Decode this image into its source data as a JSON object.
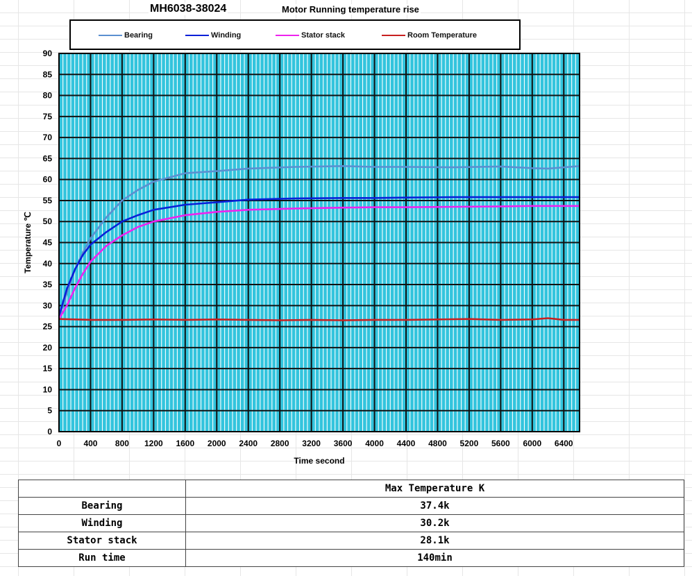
{
  "page": {
    "title": "MH6038-38024",
    "subtitle": "Motor Running temperature rise"
  },
  "chart_data": {
    "type": "line",
    "xlabel": "Time second",
    "ylabel": "Temperature ℃",
    "xlim": [
      0,
      6600
    ],
    "ylim": [
      0,
      90
    ],
    "xticks": [
      0,
      400,
      800,
      1200,
      1600,
      2000,
      2400,
      2800,
      3200,
      3600,
      4000,
      4400,
      4800,
      5200,
      5600,
      6000,
      6400
    ],
    "yticks": [
      0,
      5,
      10,
      15,
      20,
      25,
      30,
      35,
      40,
      45,
      50,
      55,
      60,
      65,
      70,
      75,
      80,
      85,
      90
    ],
    "grid": true,
    "legend_position": "top",
    "plot_background": "#33c4dd",
    "series": [
      {
        "name": "Bearing",
        "color": "#5b8fd0",
        "x": [
          0,
          100,
          200,
          300,
          400,
          600,
          800,
          1000,
          1200,
          1600,
          2000,
          2400,
          3000,
          3600,
          4000,
          4400,
          5000,
          5600,
          6000,
          6200,
          6600
        ],
        "y": [
          27,
          33,
          38.5,
          42.5,
          46,
          51,
          55,
          57.5,
          59.5,
          61.5,
          62,
          62.6,
          63,
          63.2,
          63,
          63,
          62.9,
          63.1,
          62.7,
          62.6,
          63.2
        ]
      },
      {
        "name": "Winding",
        "color": "#0a1fd8",
        "x": [
          0,
          100,
          200,
          300,
          400,
          600,
          800,
          1000,
          1200,
          1600,
          2000,
          2400,
          3000,
          3600,
          4000,
          4400,
          5000,
          5600,
          6000,
          6600
        ],
        "y": [
          27.5,
          34,
          38.5,
          42,
          44.5,
          47.5,
          50,
          51.5,
          52.8,
          54,
          54.6,
          55.2,
          55.5,
          55.6,
          55.6,
          55.7,
          55.8,
          55.8,
          55.8,
          55.8
        ]
      },
      {
        "name": "Stator stack",
        "color": "#ee22ee",
        "x": [
          0,
          100,
          200,
          300,
          400,
          600,
          800,
          1000,
          1200,
          1600,
          2000,
          2400,
          3000,
          3600,
          4000,
          4400,
          5000,
          5600,
          6000,
          6600
        ],
        "y": [
          26.8,
          30,
          34,
          37.5,
          40.5,
          44.2,
          46.7,
          48.7,
          50,
          51.5,
          52.3,
          52.8,
          53.1,
          53.3,
          53.4,
          53.4,
          53.5,
          53.6,
          53.7,
          53.7
        ]
      },
      {
        "name": "Room Temperature",
        "color": "#c81f1f",
        "x": [
          0,
          400,
          800,
          1200,
          1600,
          2000,
          2400,
          2800,
          3200,
          3600,
          4000,
          4400,
          4800,
          5200,
          5600,
          6000,
          6200,
          6400,
          6600
        ],
        "y": [
          26.8,
          26.6,
          26.6,
          26.7,
          26.6,
          26.7,
          26.6,
          26.5,
          26.6,
          26.5,
          26.6,
          26.6,
          26.7,
          26.8,
          26.6,
          26.7,
          27,
          26.6,
          26.6
        ]
      }
    ]
  },
  "results_table": {
    "header": "Max Temperature K",
    "rows": [
      {
        "label": "Bearing",
        "value": "37.4k"
      },
      {
        "label": "Winding",
        "value": "30.2k"
      },
      {
        "label": "Stator stack",
        "value": "28.1k"
      },
      {
        "label": "Run time",
        "value": "140min"
      }
    ]
  }
}
